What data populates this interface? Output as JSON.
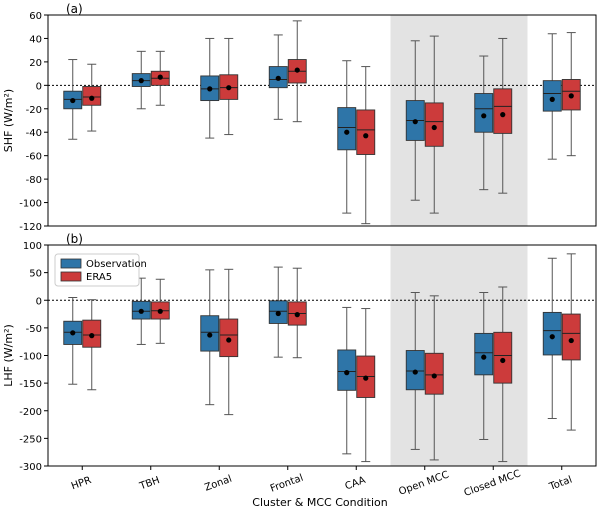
{
  "xlabel": "Cluster & MCC Condition",
  "categories": [
    "HPR",
    "TBH",
    "Zonal",
    "Frontal",
    "CAA",
    "Open MCC",
    "Closed MCC",
    "Total"
  ],
  "shaded_categories": [
    "Open MCC",
    "Closed MCC"
  ],
  "colors": {
    "Observation": "#2e75a8",
    "ERA5": "#cc3b3b",
    "shade": "#e3e3e3"
  },
  "legend": {
    "obs": "Observation",
    "era": "ERA5",
    "placement": "upper-left of panel (b)"
  },
  "chart_data": [
    {
      "type": "box",
      "panel_label": "(a)",
      "ylabel": "SHF (W/m²)",
      "ylim": [
        -120,
        60
      ],
      "yticks": [
        60,
        40,
        20,
        0,
        -20,
        -40,
        -60,
        -80,
        -100,
        -120
      ],
      "zero_line": true,
      "series": [
        {
          "name": "Observation",
          "boxes": [
            {
              "whislo": -46,
              "q1": -20,
              "med": -12,
              "q3": -5,
              "whishi": 22,
              "mean": -13
            },
            {
              "whislo": -20,
              "q1": -1,
              "med": 4,
              "q3": 10,
              "whishi": 29,
              "mean": 4
            },
            {
              "whislo": -45,
              "q1": -13,
              "med": -3,
              "q3": 8,
              "whishi": 40,
              "mean": -3
            },
            {
              "whislo": -29,
              "q1": -2,
              "med": 5,
              "q3": 16,
              "whishi": 43,
              "mean": 6
            },
            {
              "whislo": -109,
              "q1": -55,
              "med": -36,
              "q3": -19,
              "whishi": 21,
              "mean": -40
            },
            {
              "whislo": -98,
              "q1": -47,
              "med": -30,
              "q3": -13,
              "whishi": 38,
              "mean": -31
            },
            {
              "whislo": -89,
              "q1": -40,
              "med": -20,
              "q3": -7,
              "whishi": 25,
              "mean": -26
            },
            {
              "whislo": -63,
              "q1": -22,
              "med": -7,
              "q3": 4,
              "whishi": 44,
              "mean": -12
            }
          ]
        },
        {
          "name": "ERA5",
          "boxes": [
            {
              "whislo": -39,
              "q1": -17,
              "med": -10,
              "q3": -1,
              "whishi": 18,
              "mean": -11
            },
            {
              "whislo": -17,
              "q1": 0,
              "med": 6,
              "q3": 12,
              "whishi": 29,
              "mean": 7
            },
            {
              "whislo": -42,
              "q1": -12,
              "med": -2,
              "q3": 9,
              "whishi": 40,
              "mean": -2
            },
            {
              "whislo": -31,
              "q1": 2,
              "med": 12,
              "q3": 22,
              "whishi": 55,
              "mean": 13
            },
            {
              "whislo": -118,
              "q1": -59,
              "med": -38,
              "q3": -21,
              "whishi": 16,
              "mean": -43
            },
            {
              "whislo": -109,
              "q1": -52,
              "med": -31,
              "q3": -15,
              "whishi": 42,
              "mean": -36
            },
            {
              "whislo": -92,
              "q1": -41,
              "med": -18,
              "q3": -3,
              "whishi": 40,
              "mean": -25
            },
            {
              "whislo": -60,
              "q1": -21,
              "med": -5,
              "q3": 5,
              "whishi": 45,
              "mean": -9
            }
          ]
        }
      ]
    },
    {
      "type": "box",
      "panel_label": "(b)",
      "ylabel": "LHF (W/m²)",
      "ylim": [
        -300,
        100
      ],
      "yticks": [
        100,
        50,
        0,
        -50,
        -100,
        -150,
        -200,
        -250,
        -300
      ],
      "zero_line": true,
      "series": [
        {
          "name": "Observation",
          "boxes": [
            {
              "whislo": -152,
              "q1": -80,
              "med": -58,
              "q3": -38,
              "whishi": 5,
              "mean": -59
            },
            {
              "whislo": -80,
              "q1": -34,
              "med": -20,
              "q3": -2,
              "whishi": 40,
              "mean": -20
            },
            {
              "whislo": -189,
              "q1": -92,
              "med": -58,
              "q3": -28,
              "whishi": 55,
              "mean": -63
            },
            {
              "whislo": -103,
              "q1": -42,
              "med": -20,
              "q3": -1,
              "whishi": 60,
              "mean": -24
            },
            {
              "whislo": -278,
              "q1": -163,
              "med": -129,
              "q3": -90,
              "whishi": -13,
              "mean": -131
            },
            {
              "whislo": -270,
              "q1": -162,
              "med": -128,
              "q3": -91,
              "whishi": 14,
              "mean": -130
            },
            {
              "whislo": -252,
              "q1": -135,
              "med": -95,
              "q3": -60,
              "whishi": 14,
              "mean": -103
            },
            {
              "whislo": -214,
              "q1": -99,
              "med": -55,
              "q3": -22,
              "whishi": 76,
              "mean": -66
            }
          ]
        },
        {
          "name": "ERA5",
          "boxes": [
            {
              "whislo": -162,
              "q1": -85,
              "med": -63,
              "q3": -36,
              "whishi": 1,
              "mean": -64
            },
            {
              "whislo": -78,
              "q1": -34,
              "med": -19,
              "q3": -3,
              "whishi": 38,
              "mean": -20
            },
            {
              "whislo": -207,
              "q1": -102,
              "med": -63,
              "q3": -34,
              "whishi": 56,
              "mean": -72
            },
            {
              "whislo": -104,
              "q1": -45,
              "med": -24,
              "q3": -3,
              "whishi": 58,
              "mean": -26
            },
            {
              "whislo": -292,
              "q1": -176,
              "med": -138,
              "q3": -101,
              "whishi": -15,
              "mean": -141
            },
            {
              "whislo": -289,
              "q1": -170,
              "med": -135,
              "q3": -96,
              "whishi": 8,
              "mean": -137
            },
            {
              "whislo": -292,
              "q1": -150,
              "med": -100,
              "q3": -58,
              "whishi": 24,
              "mean": -109
            },
            {
              "whislo": -235,
              "q1": -108,
              "med": -60,
              "q3": -25,
              "whishi": 84,
              "mean": -73
            }
          ]
        }
      ]
    }
  ]
}
